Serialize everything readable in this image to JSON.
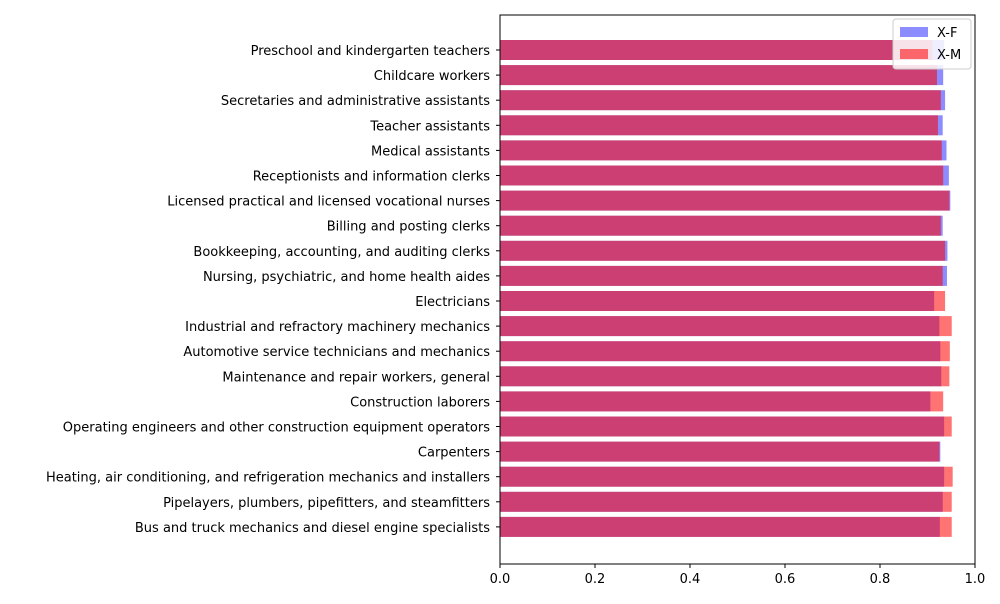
{
  "chart_data": {
    "type": "bar",
    "orientation": "horizontal",
    "title": "",
    "xlabel": "",
    "ylabel": "",
    "xlim": [
      0,
      1.0
    ],
    "xticks": [
      "0.0",
      "0.2",
      "0.4",
      "0.6",
      "0.8",
      "1.0"
    ],
    "grid": false,
    "legend_position": "top-right",
    "categories": [
      "Preschool and kindergarten teachers",
      "Childcare workers",
      "Secretaries and administrative assistants",
      "Teacher assistants",
      "Medical assistants",
      "Receptionists and information clerks",
      "Licensed practical and licensed vocational nurses",
      "Billing and posting clerks",
      "Bookkeeping, accounting, and auditing clerks",
      "Nursing, psychiatric, and home health aides",
      "Electricians",
      "Industrial and refractory machinery mechanics",
      "Automotive service technicians and mechanics",
      "Maintenance and repair workers, general",
      "Construction laborers",
      "Operating engineers and other construction equipment operators",
      "Carpenters",
      "Heating, air conditioning, and refrigeration mechanics and installers",
      "Pipelayers, plumbers, pipefitters, and steamfitters",
      "Bus and truck mechanics and diesel engine specialists"
    ],
    "series": [
      {
        "name": "X-F",
        "color": "#0000ff",
        "opacity": 0.45,
        "values": [
          0.935,
          0.933,
          0.937,
          0.932,
          0.94,
          0.945,
          0.948,
          0.932,
          0.942,
          0.941,
          0.914,
          0.925,
          0.927,
          0.929,
          0.906,
          0.935,
          0.927,
          0.935,
          0.932,
          0.926
        ]
      },
      {
        "name": "X-M",
        "color": "#ff0000",
        "opacity": 0.55,
        "values": [
          0.91,
          0.92,
          0.928,
          0.922,
          0.93,
          0.933,
          0.946,
          0.928,
          0.937,
          0.932,
          0.937,
          0.951,
          0.947,
          0.946,
          0.933,
          0.951,
          0.925,
          0.953,
          0.951,
          0.951
        ]
      }
    ]
  }
}
